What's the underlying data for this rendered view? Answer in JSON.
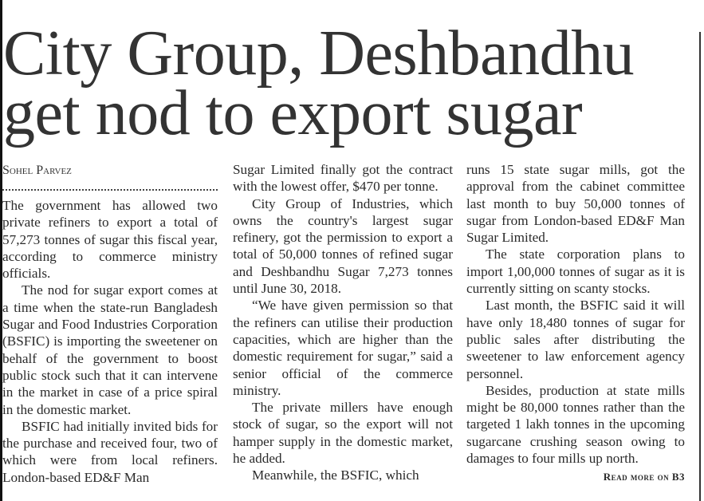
{
  "headline": {
    "line1": "City Group, Deshbandhu",
    "line2": "get nod to export sugar"
  },
  "byline": "Sohel Parvez",
  "columns": [
    {
      "paragraphs": [
        "The government has allowed two private refiners to export a total of 57,273 tonnes of sugar this fiscal year, according to commerce ministry officials.",
        "The nod for sugar export comes at a time when the state-run Bangladesh Sugar and Food Industries Corporation (BSFIC) is importing the sweetener on behalf of the government to boost public stock such that it can intervene in the market in case of a price spiral in the domestic market.",
        "BSFIC had initially invited bids for the purchase and received four, two of which were from local refiners. London-based ED&F Man"
      ]
    },
    {
      "paragraphs": [
        "Sugar Limited finally got the contract with the lowest offer, $470 per tonne.",
        "City Group of Industries, which owns the country's largest sugar refinery, got the permission to export a total of 50,000 tonnes of refined sugar and Deshbandhu Sugar 7,273 tonnes until June 30, 2018.",
        "“We have given permission so that the refiners can utilise their production capacities, which are higher than the domestic requirement for sugar,” said a senior official of the commerce ministry.",
        "The private millers have enough stock of sugar, so the export will not hamper supply in the domestic market, he added.",
        "Meanwhile, the BSFIC, which"
      ]
    },
    {
      "paragraphs": [
        "runs 15 state sugar mills, got the approval from the cabinet committee last month to buy 50,000 tonnes of sugar from London-based ED&F Man Sugar Limited.",
        "The state corporation plans to import 1,00,000 tonnes of sugar as it is currently sitting on scanty stocks.",
        "Last month, the BSFIC said it will have only 18,480 tonnes of sugar for public sales after distributing the sweetener to law enforcement agency personnel.",
        "Besides, production at state mills might be 80,000 tonnes rather than the targeted 1 lakh tonnes in the upcoming sugarcane crushing season owing to damages to four mills up north."
      ]
    }
  ],
  "read_more": "Read more on B3"
}
